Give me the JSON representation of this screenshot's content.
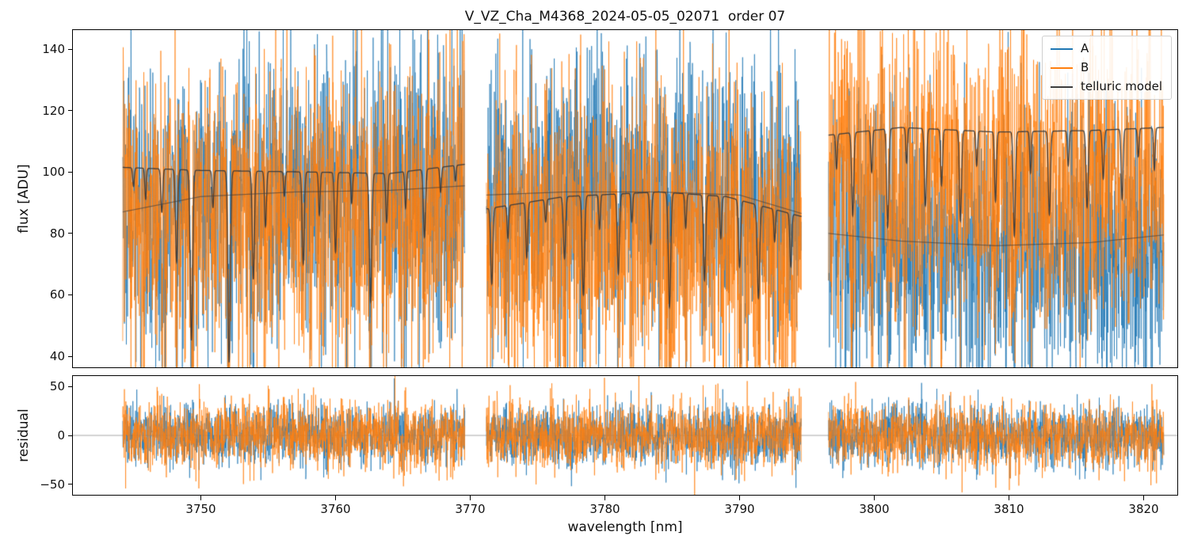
{
  "chart_data": {
    "type": "line",
    "title": "V_VZ_Cha_M4368_2024-05-05_02071  order 07",
    "xlabel": "wavelength [nm]",
    "xlim": [
      3740.5,
      3822.5
    ],
    "xticks": [
      3750,
      3760,
      3770,
      3780,
      3790,
      3800,
      3810,
      3820
    ],
    "panels": [
      {
        "name": "flux",
        "ylabel": "flux [ADU]",
        "ylim": [
          36.4,
          146.2
        ],
        "yticks": [
          40,
          60,
          80,
          100,
          120,
          140
        ]
      },
      {
        "name": "residual",
        "ylabel": "residual",
        "ylim": [
          -60.5,
          60.5
        ],
        "yticks": [
          -50,
          0,
          50
        ]
      }
    ],
    "legend_position": "upper right",
    "grid": false,
    "legend": [
      {
        "label": "A",
        "color": "#1f77b4"
      },
      {
        "label": "B",
        "color": "#ff7f0e"
      },
      {
        "label": "telluric model",
        "color": "#3d3d3d"
      }
    ],
    "zero_line_color": "#a6a6a6",
    "noise": {
      "seed": 20240505,
      "sigma_A": 23,
      "sigma_B": 25,
      "residual_sigma_A": 15,
      "residual_sigma_B": 17,
      "sample_step_nm": 0.018,
      "b_scale": 0.88,
      "trace_alpha": 0.9
    },
    "segments": [
      {
        "xrange": [
          3744.2,
          3769.6
        ],
        "continuum_A": [
          [
            3744.2,
            87.0
          ],
          [
            3750.0,
            92.0
          ],
          [
            3757.0,
            93.5
          ],
          [
            3764.0,
            94.0
          ],
          [
            3769.6,
            95.5
          ]
        ],
        "telluric_continuum": [
          [
            3744.2,
            101.5
          ],
          [
            3750.0,
            100.5
          ],
          [
            3758.0,
            100.0
          ],
          [
            3764.0,
            99.5
          ],
          [
            3769.6,
            102.5
          ]
        ],
        "telluric_lines": [
          [
            3745.0,
            6,
            0.06
          ],
          [
            3745.9,
            10,
            0.06
          ],
          [
            3747.1,
            14,
            0.07
          ],
          [
            3748.2,
            30,
            0.08
          ],
          [
            3749.3,
            55,
            0.09
          ],
          [
            3750.9,
            12,
            0.06
          ],
          [
            3752.1,
            62,
            0.09
          ],
          [
            3753.9,
            35,
            0.08
          ],
          [
            3754.8,
            18,
            0.07
          ],
          [
            3756.2,
            8,
            0.06
          ],
          [
            3757.6,
            30,
            0.08
          ],
          [
            3758.8,
            14,
            0.06
          ],
          [
            3760.0,
            26,
            0.08
          ],
          [
            3761.2,
            10,
            0.06
          ],
          [
            3762.6,
            42,
            0.09
          ],
          [
            3763.8,
            16,
            0.07
          ],
          [
            3765.2,
            12,
            0.06
          ],
          [
            3766.6,
            22,
            0.08
          ],
          [
            3767.8,
            8,
            0.06
          ],
          [
            3768.9,
            5,
            0.05
          ]
        ]
      },
      {
        "xrange": [
          3771.2,
          3794.6
        ],
        "continuum_A": [
          [
            3771.2,
            92.5
          ],
          [
            3777.0,
            93.5
          ],
          [
            3784.0,
            93.5
          ],
          [
            3790.0,
            92.5
          ],
          [
            3794.6,
            86.5
          ]
        ],
        "telluric_continuum": [
          [
            3771.2,
            88.0
          ],
          [
            3777.0,
            92.0
          ],
          [
            3784.0,
            93.5
          ],
          [
            3789.0,
            92.0
          ],
          [
            3794.6,
            85.5
          ]
        ],
        "telluric_lines": [
          [
            3771.6,
            28,
            0.08
          ],
          [
            3772.8,
            12,
            0.06
          ],
          [
            3774.2,
            20,
            0.07
          ],
          [
            3775.6,
            8,
            0.06
          ],
          [
            3777.0,
            22,
            0.08
          ],
          [
            3778.4,
            35,
            0.09
          ],
          [
            3779.6,
            12,
            0.06
          ],
          [
            3781.0,
            28,
            0.08
          ],
          [
            3782.0,
            10,
            0.06
          ],
          [
            3783.4,
            18,
            0.07
          ],
          [
            3784.8,
            40,
            0.09
          ],
          [
            3786.0,
            12,
            0.06
          ],
          [
            3787.4,
            30,
            0.08
          ],
          [
            3788.6,
            15,
            0.07
          ],
          [
            3790.0,
            24,
            0.08
          ],
          [
            3791.4,
            34,
            0.09
          ],
          [
            3792.6,
            12,
            0.06
          ],
          [
            3793.8,
            20,
            0.07
          ]
        ]
      },
      {
        "xrange": [
          3796.6,
          3821.5
        ],
        "continuum_A": [
          [
            3796.6,
            80.0
          ],
          [
            3802.0,
            77.5
          ],
          [
            3809.0,
            76.0
          ],
          [
            3816.0,
            77.0
          ],
          [
            3821.5,
            79.5
          ]
        ],
        "telluric_continuum": [
          [
            3796.6,
            112.0
          ],
          [
            3802.0,
            114.5
          ],
          [
            3809.0,
            113.0
          ],
          [
            3816.0,
            113.5
          ],
          [
            3821.5,
            114.5
          ]
        ],
        "telluric_lines": [
          [
            3797.2,
            10,
            0.06
          ],
          [
            3798.4,
            24,
            0.08
          ],
          [
            3799.8,
            12,
            0.06
          ],
          [
            3801.0,
            28,
            0.08
          ],
          [
            3802.4,
            10,
            0.06
          ],
          [
            3803.8,
            22,
            0.08
          ],
          [
            3805.0,
            16,
            0.07
          ],
          [
            3806.4,
            26,
            0.08
          ],
          [
            3807.6,
            10,
            0.06
          ],
          [
            3809.0,
            20,
            0.07
          ],
          [
            3810.4,
            30,
            0.08
          ],
          [
            3811.6,
            12,
            0.06
          ],
          [
            3813.0,
            24,
            0.08
          ],
          [
            3814.4,
            10,
            0.06
          ],
          [
            3815.8,
            22,
            0.08
          ],
          [
            3817.0,
            14,
            0.07
          ],
          [
            3818.4,
            20,
            0.07
          ],
          [
            3819.6,
            8,
            0.06
          ],
          [
            3820.8,
            12,
            0.06
          ]
        ]
      }
    ]
  }
}
